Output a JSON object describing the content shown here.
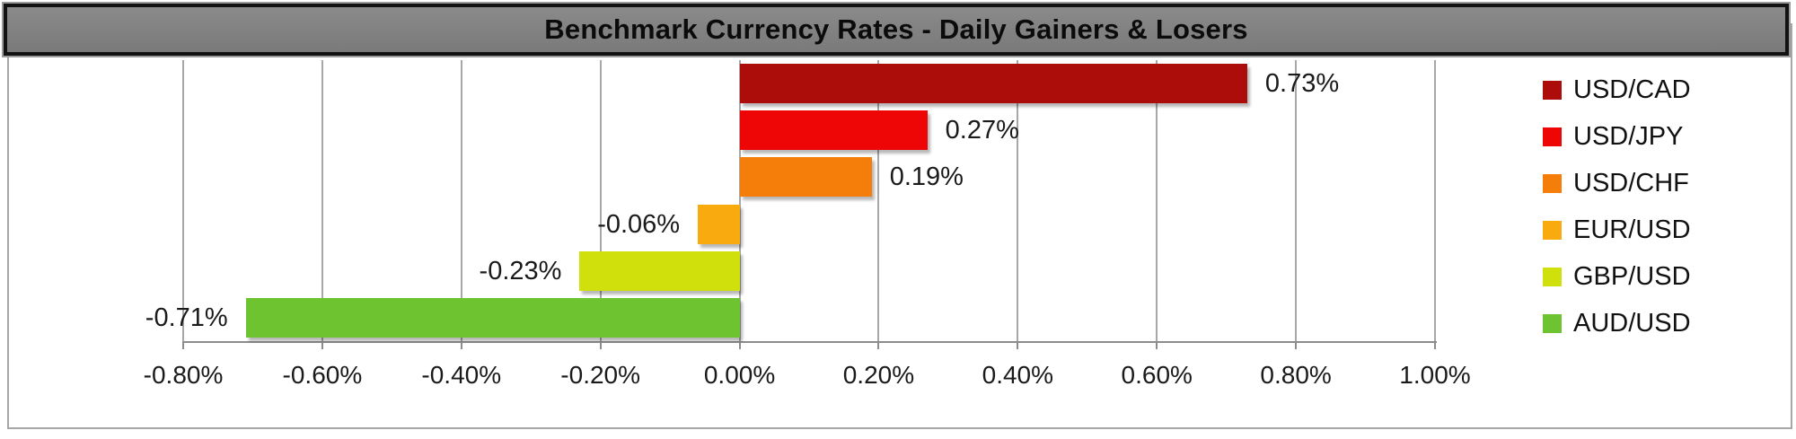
{
  "title": "Benchmark Currency Rates - Daily Gainers & Losers",
  "chart_data": {
    "type": "bar",
    "orientation": "horizontal",
    "title": "Benchmark Currency Rates - Daily Gainers & Losers",
    "categories": [
      "USD/CAD",
      "USD/JPY",
      "USD/CHF",
      "EUR/USD",
      "GBP/USD",
      "AUD/USD"
    ],
    "values": [
      0.73,
      0.27,
      0.19,
      -0.06,
      -0.23,
      -0.71
    ],
    "value_labels": [
      "0.73%",
      "0.27%",
      "0.19%",
      "-0.06%",
      "-0.23%",
      "-0.71%"
    ],
    "bar_colors": [
      "#AC0D0B",
      "#EE0505",
      "#F57D0A",
      "#F8AA0E",
      "#CFE00D",
      "#6DC430"
    ],
    "xlim": [
      -0.8,
      1.0
    ],
    "x_tick_values": [
      -0.8,
      -0.6,
      -0.4,
      -0.2,
      0.0,
      0.2,
      0.4,
      0.6,
      0.8,
      1.0
    ],
    "x_tick_labels": [
      "-0.80%",
      "-0.60%",
      "-0.40%",
      "-0.20%",
      "0.00%",
      "0.20%",
      "0.40%",
      "0.60%",
      "0.80%",
      "1.00%"
    ],
    "grid": "vertical",
    "legend_position": "right",
    "legend": [
      {
        "label": "USD/CAD",
        "color": "#AC0D0B"
      },
      {
        "label": "USD/JPY",
        "color": "#EE0505"
      },
      {
        "label": "USD/CHF",
        "color": "#F57D0A"
      },
      {
        "label": "EUR/USD",
        "color": "#F8AA0E"
      },
      {
        "label": "GBP/USD",
        "color": "#CFE00D"
      },
      {
        "label": "AUD/USD",
        "color": "#6DC430"
      }
    ]
  },
  "colors": {
    "title_bg": "#7F7F7F",
    "title_border": "#121212",
    "grid": "#A7A7A7",
    "axis": "#8C8C8C",
    "chart_border": "#A6A6A6",
    "label_text": "#1A1A1A"
  }
}
